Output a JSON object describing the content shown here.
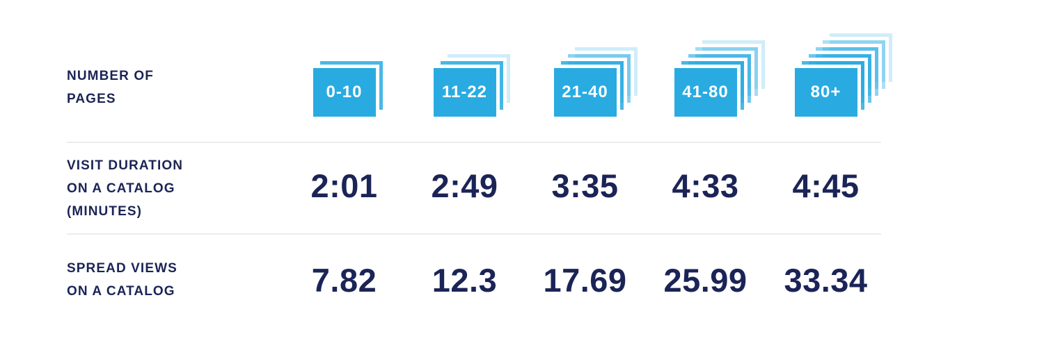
{
  "colors": {
    "accent_blue": "#29ABE2",
    "accent_blue_rgb": "41,171,226",
    "navy": "#1B2456",
    "divider": "#ECECEC",
    "badge_text": "#FFFFFF"
  },
  "table": {
    "row_labels": {
      "pages": "NUMBER OF\nPAGES",
      "duration": "VISIT DURATION\nON A CATALOG\n(MINUTES)",
      "spreads": "SPREAD VIEWS\nON A CATALOG"
    },
    "columns": [
      {
        "pages": "0-10",
        "stack_layers": 2,
        "duration": "2:01",
        "spread_views": "7.82"
      },
      {
        "pages": "11-22",
        "stack_layers": 3,
        "duration": "2:49",
        "spread_views": "12.3"
      },
      {
        "pages": "21-40",
        "stack_layers": 4,
        "duration": "3:35",
        "spread_views": "17.69"
      },
      {
        "pages": "41-80",
        "stack_layers": 5,
        "duration": "4:33",
        "spread_views": "25.99"
      },
      {
        "pages": "80+",
        "stack_layers": 6,
        "duration": "4:45",
        "spread_views": "33.34"
      }
    ]
  },
  "chart_data": {
    "type": "table",
    "categories_label": "NUMBER OF PAGES",
    "categories": [
      "0-10",
      "11-22",
      "21-40",
      "41-80",
      "80+"
    ],
    "series": [
      {
        "name": "VISIT DURATION ON A CATALOG (MINUTES)",
        "values": [
          "2:01",
          "2:49",
          "3:35",
          "4:33",
          "4:45"
        ]
      },
      {
        "name": "SPREAD VIEWS ON A CATALOG",
        "values": [
          7.82,
          12.3,
          17.69,
          25.99,
          33.34
        ]
      }
    ],
    "layout_hints": {
      "orientation": "rows-as-series",
      "icons": "stacked pages, layer count increases with page range",
      "grid": "light horizontal dividers between rows"
    }
  }
}
